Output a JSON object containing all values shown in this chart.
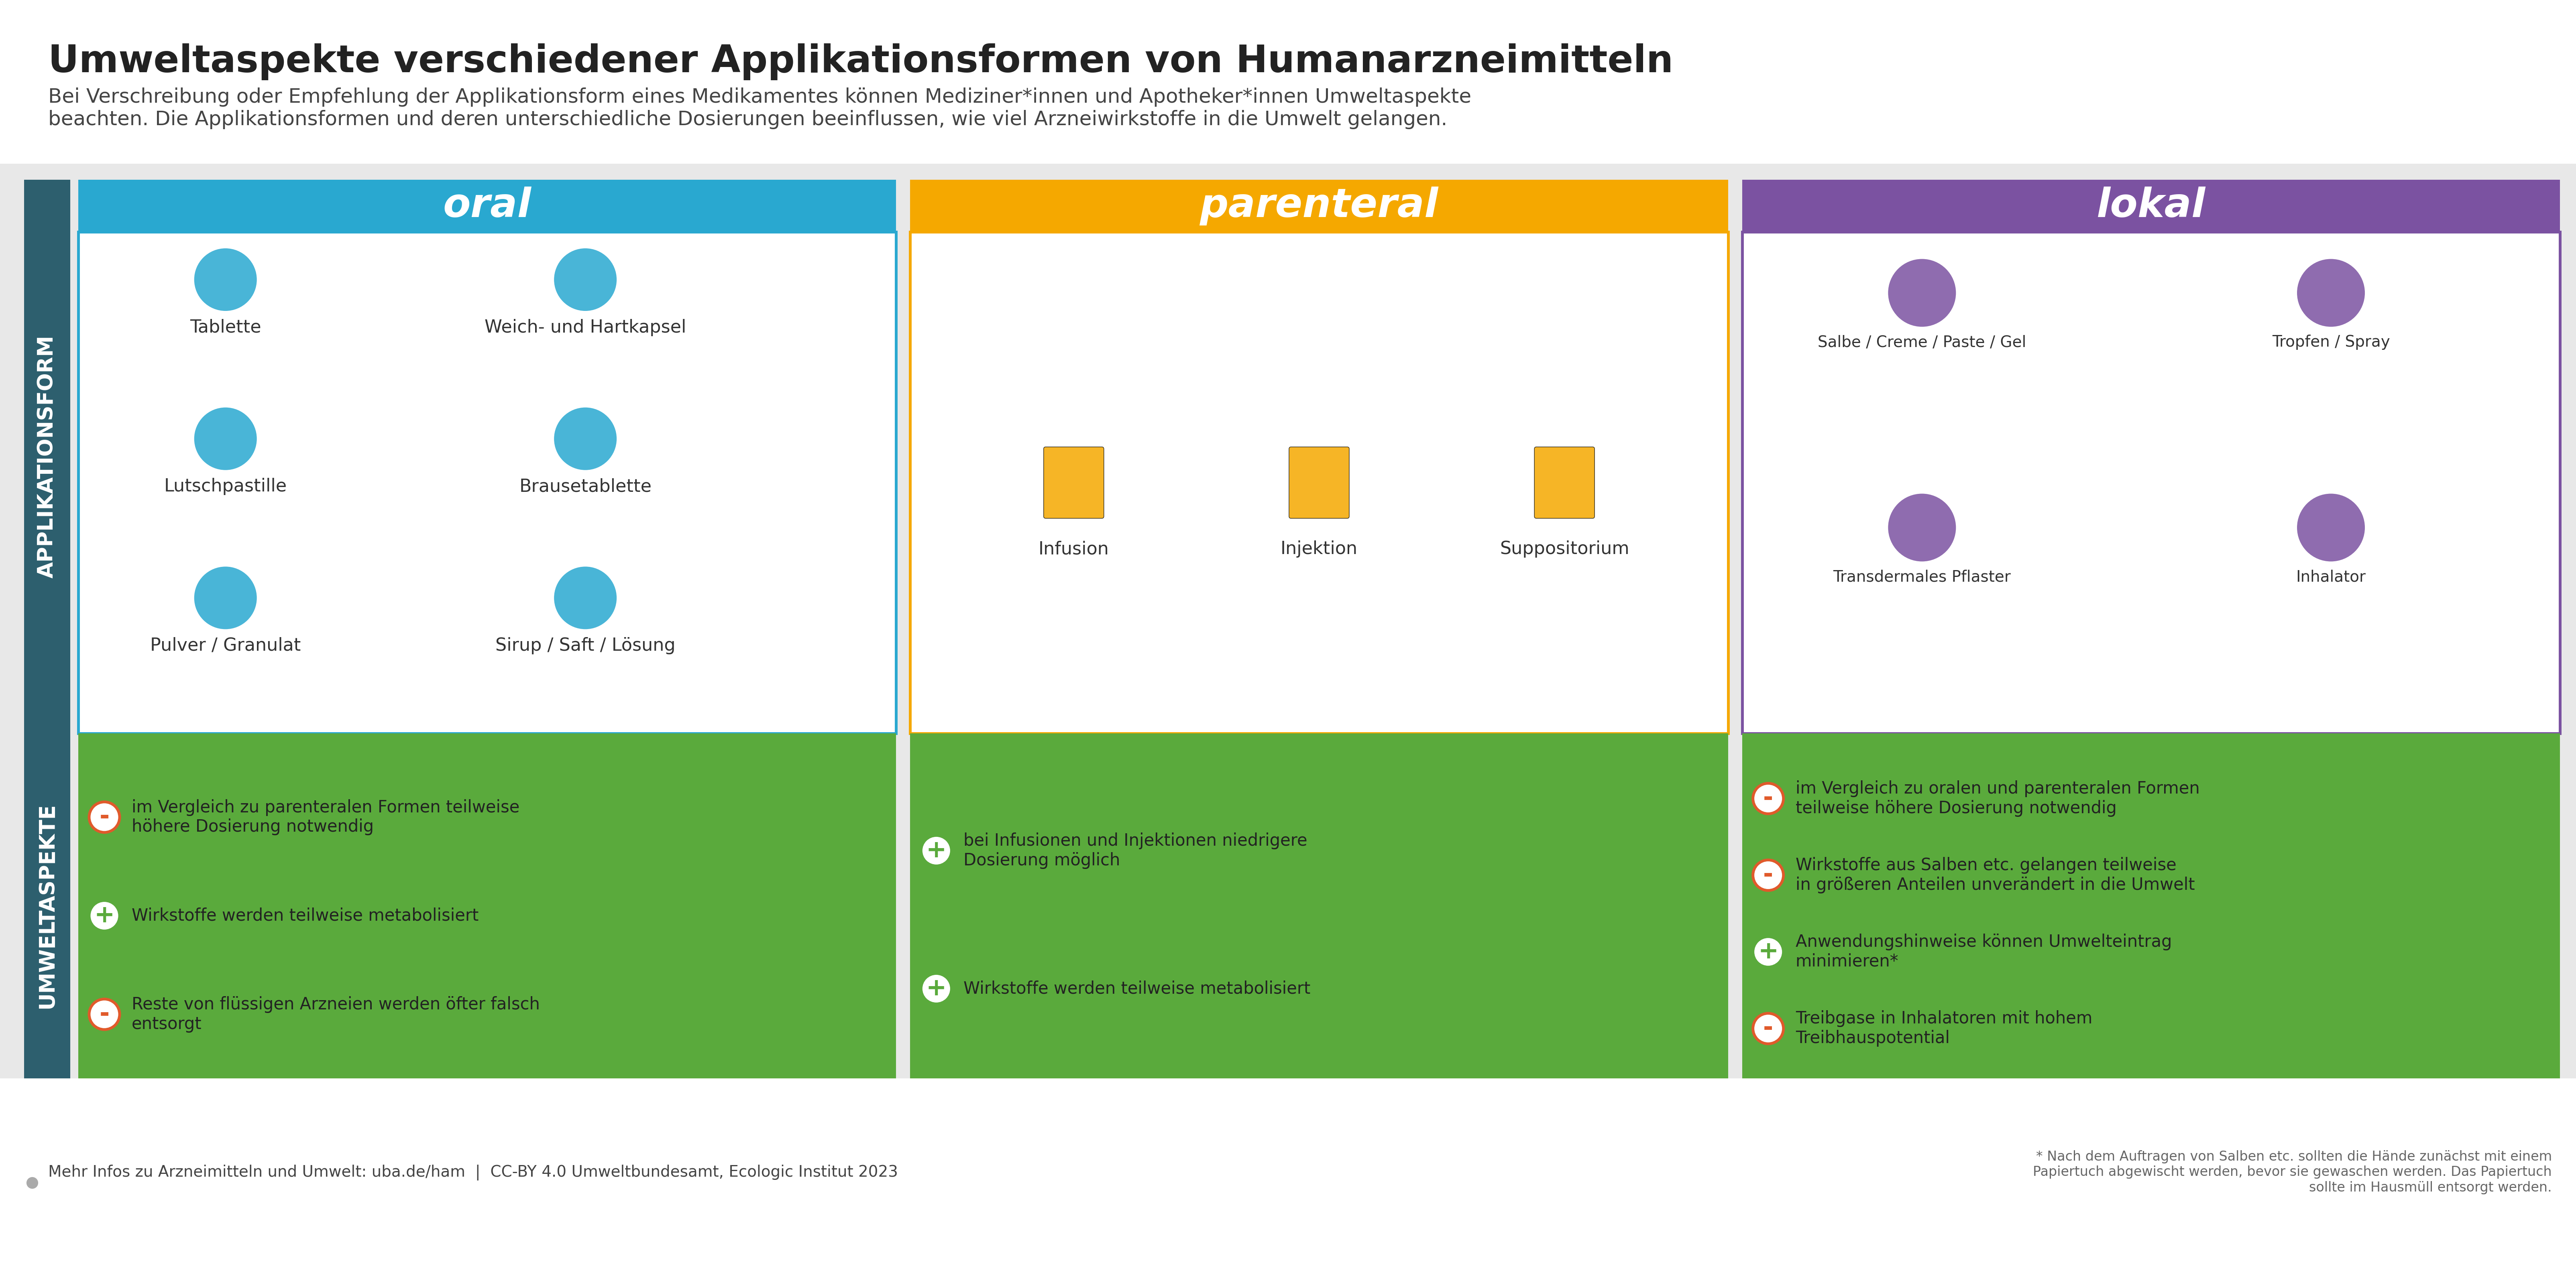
{
  "title": "Umweltaspekte verschiedener Applikationsformen von Humanarzneimitteln",
  "subtitle": "Bei Verschreibung oder Empfehlung der Applikationsform eines Medikamentes können Mediziner*innen und Apotheker*innen Umweltaspekte\nbeachten. Die Applikationsformen und deren unterschiedliche Dosierungen beeinflussen, wie viel Arzneiwirkstoffe in die Umwelt gelangen.",
  "bg_color": "#e8e8e8",
  "sidebar_color": "#2d5f6e",
  "sidebar_text_applikation": "APPLIKATIONSFORM",
  "sidebar_text_umwelt": "UMWELTASPEKTE",
  "cols": [
    {
      "name": "oral",
      "header_color": "#29a8d0",
      "border_color": "#29a8d0",
      "items_color": "#ffffff",
      "icon_color": "#29a8d0",
      "icons": [
        "Tablette",
        "Weich- und Hartkapsel",
        "Lutschpastille",
        "Brausetablette",
        "Pulver / Granulat",
        "Sirup / Saft / Lösung"
      ],
      "umwelt_bg": "#5aaa3c",
      "umwelt_items": [
        {
          "sign": "-",
          "text": "im Vergleich zu parenteralen Formen teilweise\nhöhere Dosierung notwendig"
        },
        {
          "sign": "+",
          "text": "Wirkstoffe werden teilweise metabolisiert"
        },
        {
          "sign": "-",
          "text": "Reste von flüssigen Arzneien werden öfter falsch\nentsorgt"
        }
      ]
    },
    {
      "name": "parenteral",
      "header_color": "#f5a800",
      "border_color": "#f5a800",
      "items_color": "#ffffff",
      "icon_color": "#f5a800",
      "icons": [
        "Infusion",
        "Injektion",
        "Suppositorium"
      ],
      "umwelt_bg": "#5aaa3c",
      "umwelt_items": [
        {
          "sign": "+",
          "text": "bei Infusionen und Injektionen niedrigere\nDosierung möglich"
        },
        {
          "sign": "+",
          "text": "Wirkstoffe werden teilweise metabolisiert"
        }
      ]
    },
    {
      "name": "lokal",
      "header_color": "#7b52a1",
      "border_color": "#7b52a1",
      "items_color": "#ffffff",
      "icon_color": "#7b52a1",
      "icons": [
        "Salbe / Creme / Paste / Gel",
        "Tropfen / Spray",
        "Transdermales Pflaster",
        "Inhalator"
      ],
      "umwelt_bg": "#5aaa3c",
      "umwelt_items": [
        {
          "sign": "-",
          "text": "im Vergleich zu oralen und parenteralen Formen\nteilweise höhere Dosierung notwendig"
        },
        {
          "sign": "-",
          "text": "Wirkstoffe aus Salben etc. gelangen teilweise\nin größeren Anteilen unverändert in die Umwelt"
        },
        {
          "sign": "+",
          "text": "Anwendungshinweise können Umwelteintrag\nminimieren*"
        },
        {
          "sign": "-",
          "text": "Treibgase in Inhalatoren mit hohem\nTreibhauspotential"
        }
      ]
    }
  ],
  "footer_left": "Mehr Infos zu Arzneimitteln und Umwelt: uba.de/ham  |  CC-BY 4.0 Umweltbundesamt, Ecologic Institut 2023",
  "footer_right": "* Nach dem Auftragen von Salben etc. sollten die Hände zunächst mit einem\nPapiertuch abgewischt werden, bevor sie gewaschen werden. Das Papiertuch\nsollte im Hausmüll entsorgt werden.",
  "plus_color": "#5aaa3c",
  "minus_color": "#e05a2b"
}
